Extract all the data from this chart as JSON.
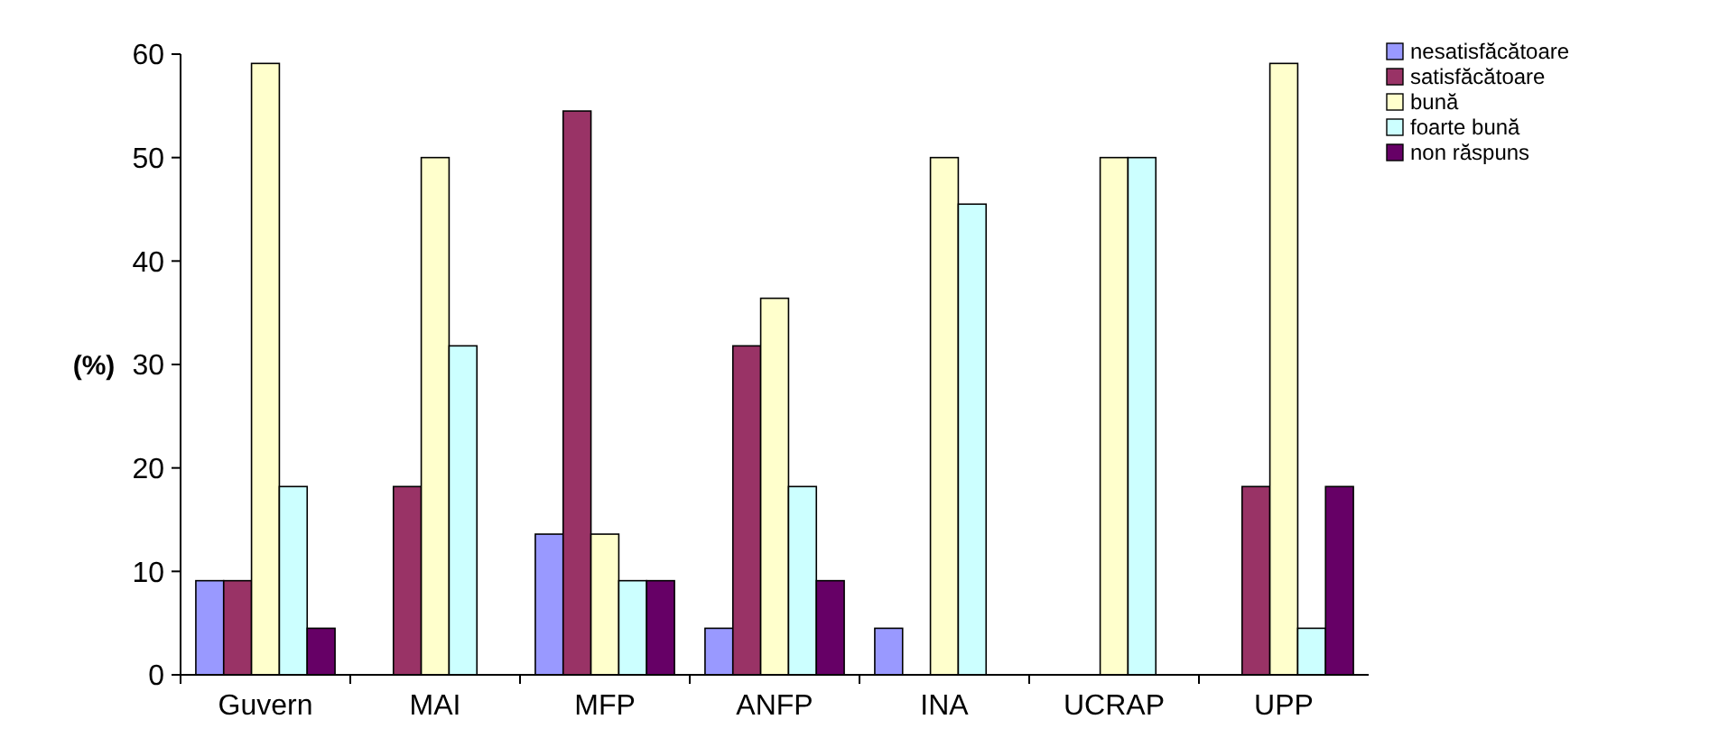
{
  "chart_data": {
    "type": "bar",
    "ylabel": "(%)",
    "categories": [
      "Guvern",
      "MAI",
      "MFP",
      "ANFP",
      "INA",
      "UCRAP",
      "UPP"
    ],
    "series": [
      {
        "name": "nesatisfăcătoare",
        "color": "#9999ff",
        "values": [
          9.1,
          0,
          13.6,
          4.5,
          4.5,
          0,
          0
        ]
      },
      {
        "name": "satisfăcătoare",
        "color": "#993366",
        "values": [
          9.1,
          18.2,
          54.5,
          31.8,
          0,
          0,
          18.2
        ]
      },
      {
        "name": "bună",
        "color": "#ffffcc",
        "values": [
          59.1,
          50,
          13.6,
          36.4,
          50,
          50,
          59.1
        ]
      },
      {
        "name": "foarte bună",
        "color": "#ccffff",
        "values": [
          18.2,
          31.8,
          9.1,
          18.2,
          45.5,
          50,
          4.5
        ]
      },
      {
        "name": "non răspuns",
        "color": "#660066",
        "values": [
          4.5,
          0,
          9.1,
          9.1,
          0,
          0,
          18.2
        ]
      }
    ],
    "ylim": [
      0,
      60
    ],
    "yticks": [
      0,
      10,
      20,
      30,
      40,
      50,
      60
    ],
    "grid": false,
    "legend": "top right"
  }
}
